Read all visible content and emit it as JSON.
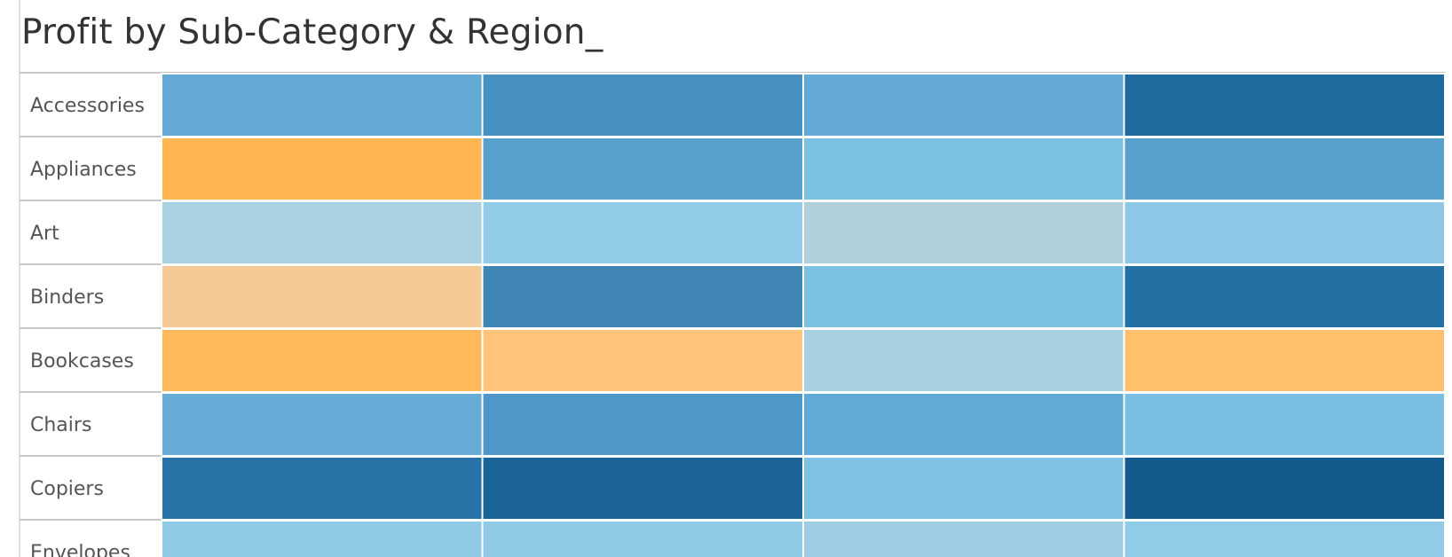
{
  "title": "Profit by Sub-Category & Region_",
  "colors": {
    "text": "#555555",
    "row_divider": "#c8c8c8",
    "cell_border": "#ffffff"
  },
  "chart_data": {
    "type": "heatmap",
    "rows": [
      "Accessories",
      "Appliances",
      "Art",
      "Binders",
      "Bookcases",
      "Chairs",
      "Copiers",
      "Envelopes"
    ],
    "columns": 4,
    "legend": "none",
    "color_scale": "orange (low) to blue (high)",
    "cell_colors": [
      [
        "#63a9d5",
        "#4690c2",
        "#63aad5",
        "#1f6a9f"
      ],
      [
        "#ffb652",
        "#57a0cc",
        "#7bc1e2",
        "#57a1cc"
      ],
      [
        "#a9d2e0",
        "#91cbe7",
        "#b0d1dc",
        "#8cc8e6"
      ],
      [
        "#f4c995",
        "#3f86b6",
        "#7bc1e1",
        "#2370a4"
      ],
      [
        "#ffb95b",
        "#ffc37c",
        "#a6cfe0",
        "#ffbf6b"
      ],
      [
        "#66acd7",
        "#4e97c8",
        "#62aad6",
        "#79bfe2"
      ],
      [
        "#2772a6",
        "#1a6498",
        "#7fc3e3",
        "#135b8d"
      ],
      [
        "#90cae6",
        "#91cae6",
        "#9fcde3",
        "#90cbe7"
      ]
    ]
  }
}
